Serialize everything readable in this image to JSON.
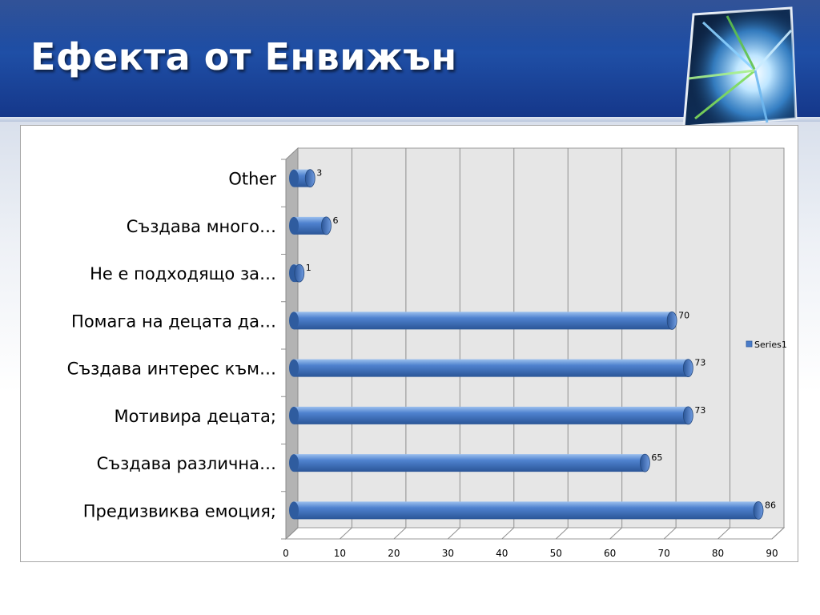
{
  "slide": {
    "title": "Ефекта от Енвижън"
  },
  "icons": {
    "logo": "light-streak-cube-logo"
  },
  "colors": {
    "header": "#1f4fa6",
    "bar": "#4a7cc9",
    "bar_dark": "#2f5c9f",
    "wall": "#e6e6e6",
    "side_wall": "#b3b3b3"
  },
  "chart_data": {
    "type": "bar",
    "orientation": "horizontal",
    "categories": [
      "Other",
      "Създава много…",
      "Не е подходящо за…",
      "Помага на децата да…",
      "Създава интерес към…",
      "Мотивира децата;",
      "Създава различна…",
      "Предизвиква емоция;"
    ],
    "series": [
      {
        "name": "Series1",
        "values": [
          3,
          6,
          1,
          70,
          73,
          73,
          65,
          86
        ]
      }
    ],
    "data_labels": [
      "3",
      "6",
      "1",
      "70",
      "73",
      "73",
      "65",
      "86"
    ],
    "xlim": [
      0,
      90
    ],
    "x_ticks": [
      "0",
      "10",
      "20",
      "30",
      "40",
      "50",
      "60",
      "70",
      "80",
      "90"
    ],
    "grid": true,
    "legend": "right",
    "style": "3d-cylinder"
  }
}
